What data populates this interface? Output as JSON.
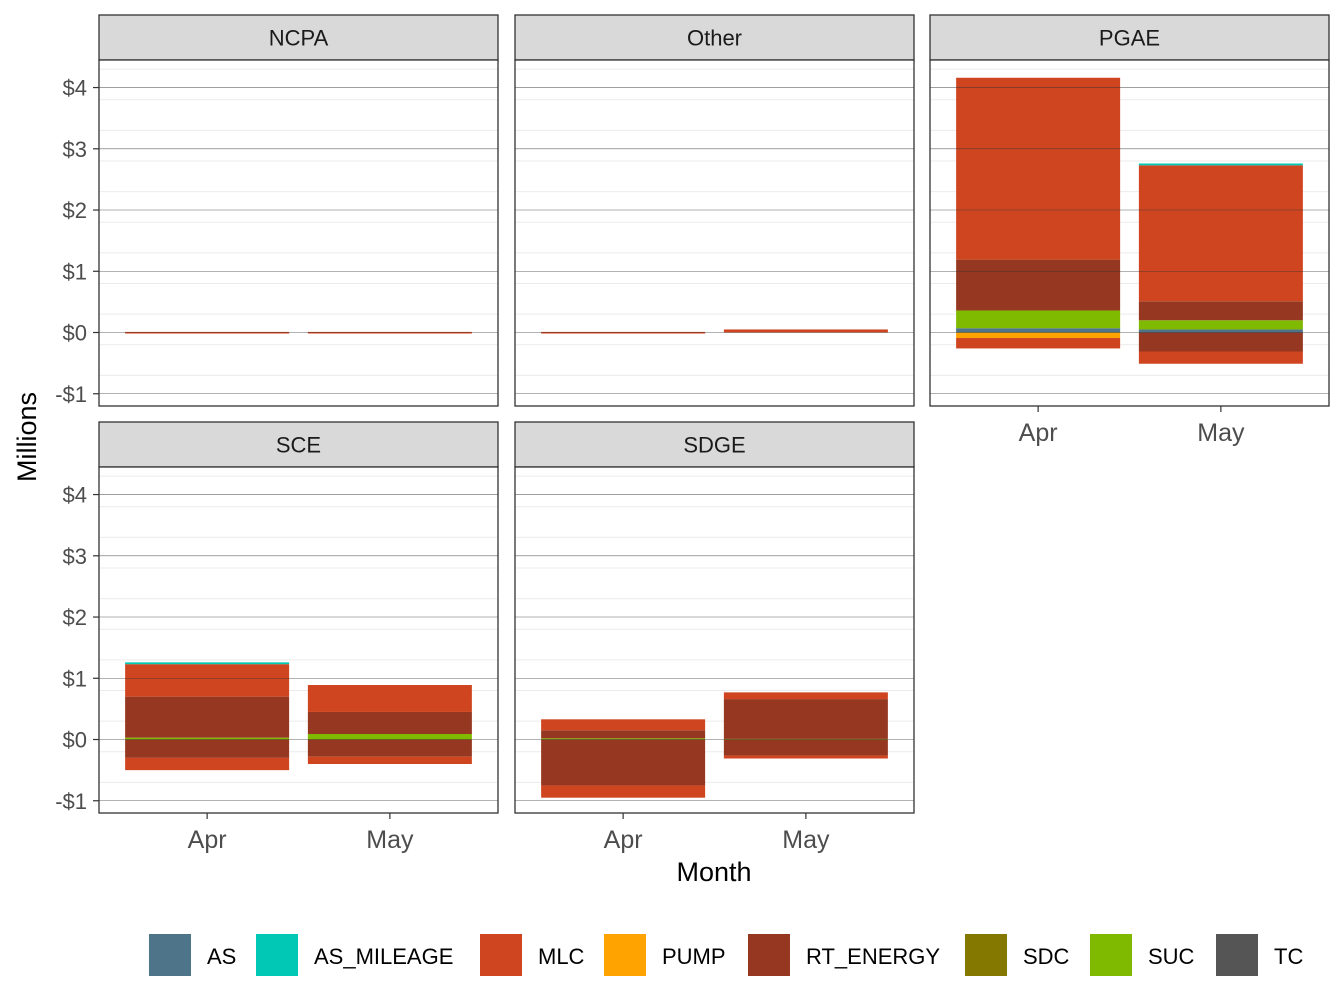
{
  "chart_data": {
    "type": "bar",
    "subtype": "stacked-faceted",
    "xlabel": "Month",
    "ylabel": "Millions",
    "categories": [
      "Apr",
      "May"
    ],
    "ylim": [
      -1.2,
      4.45
    ],
    "yticks": [
      -1,
      0,
      1,
      2,
      3,
      4
    ],
    "ytick_labels": [
      "-$1",
      "$0",
      "$1",
      "$2",
      "$3",
      "$4"
    ],
    "grid": true,
    "legend_position": "bottom",
    "series_colors": {
      "AS": "#4E7489",
      "AS_MILEAGE": "#00C8B4",
      "MLC": "#CF4520",
      "PUMP": "#FFA300",
      "RT_ENERGY": "#963821",
      "SDC": "#857800",
      "SUC": "#7FBA00",
      "TC": "#555555"
    },
    "legend": [
      "AS",
      "AS_MILEAGE",
      "MLC",
      "PUMP",
      "RT_ENERGY",
      "SDC",
      "SUC",
      "TC"
    ],
    "panels": [
      {
        "name": "NCPA",
        "bars": {
          "Apr": [
            [
              "MLC",
              -0.01
            ],
            [
              "MLC",
              0.01
            ]
          ],
          "May": [
            [
              "MLC",
              -0.01
            ],
            [
              "MLC",
              0.01
            ]
          ]
        }
      },
      {
        "name": "Other",
        "bars": {
          "Apr": [
            [
              "MLC",
              -0.01
            ],
            [
              "MLC",
              0.01
            ]
          ],
          "May": [
            [
              "MLC",
              0.05
            ]
          ]
        }
      },
      {
        "name": "PGAE",
        "bars": {
          "Apr": [
            [
              "AS",
              0.07
            ],
            [
              "SUC",
              0.29
            ],
            [
              "RT_ENERGY",
              0.83
            ],
            [
              "MLC",
              2.97
            ],
            [
              "PUMP",
              -0.09
            ],
            [
              "MLC",
              -0.17
            ]
          ],
          "May": [
            [
              "AS",
              0.05
            ],
            [
              "SUC",
              0.15
            ],
            [
              "RT_ENERGY",
              0.31
            ],
            [
              "MLC",
              2.22
            ],
            [
              "AS_MILEAGE",
              0.03
            ],
            [
              "RT_ENERGY",
              -0.31
            ],
            [
              "MLC",
              -0.2
            ]
          ]
        }
      },
      {
        "name": "SCE",
        "bars": {
          "Apr": [
            [
              "SUC",
              0.03
            ],
            [
              "RT_ENERGY",
              0.67
            ],
            [
              "MLC",
              0.53
            ],
            [
              "AS_MILEAGE",
              0.03
            ],
            [
              "RT_ENERGY",
              -0.3
            ],
            [
              "MLC",
              -0.2
            ]
          ],
          "May": [
            [
              "SUC",
              0.09
            ],
            [
              "RT_ENERGY",
              0.36
            ],
            [
              "MLC",
              0.44
            ],
            [
              "RT_ENERGY",
              -0.28
            ],
            [
              "MLC",
              -0.12
            ]
          ]
        }
      },
      {
        "name": "SDGE",
        "bars": {
          "Apr": [
            [
              "SUC",
              0.02
            ],
            [
              "RT_ENERGY",
              0.13
            ],
            [
              "MLC",
              0.18
            ],
            [
              "RT_ENERGY",
              -0.75
            ],
            [
              "MLC",
              -0.2
            ]
          ],
          "May": [
            [
              "SUC",
              0.01
            ],
            [
              "RT_ENERGY",
              0.65
            ],
            [
              "MLC",
              0.11
            ],
            [
              "RT_ENERGY",
              -0.26
            ],
            [
              "MLC",
              -0.05
            ]
          ]
        }
      }
    ]
  }
}
